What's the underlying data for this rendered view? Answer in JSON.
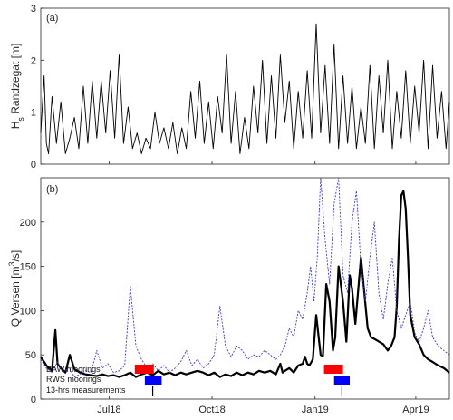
{
  "chart_data": [
    {
      "type": "line",
      "panel_label": "(a)",
      "ylabel": "H",
      "ylabel_sub": "s",
      "ylabel_rest": " Randzegat [m]",
      "ylim": [
        0,
        3
      ],
      "yticks": [
        "0",
        "1",
        "2",
        "3"
      ],
      "xlim": [
        0,
        365
      ],
      "series": [
        {
          "color": "#000000",
          "x": [
            0,
            3,
            5,
            7,
            10,
            14,
            18,
            22,
            26,
            30,
            34,
            38,
            42,
            46,
            50,
            54,
            58,
            62,
            66,
            70,
            74,
            78,
            82,
            86,
            90,
            94,
            98,
            102,
            106,
            110,
            114,
            118,
            122,
            126,
            130,
            134,
            138,
            142,
            146,
            150,
            154,
            158,
            162,
            166,
            170,
            174,
            178,
            182,
            186,
            190,
            194,
            198,
            202,
            206,
            210,
            214,
            218,
            222,
            226,
            230,
            234,
            238,
            242,
            246,
            250,
            254,
            258,
            262,
            266,
            270,
            274,
            278,
            282,
            286,
            290,
            294,
            298,
            302,
            306,
            310,
            314,
            318,
            322,
            326,
            330,
            334,
            338,
            342,
            346,
            350,
            354,
            358,
            362,
            365
          ],
          "values": [
            0.6,
            1.7,
            0.4,
            0.2,
            1.3,
            0.4,
            1.2,
            0.2,
            0.5,
            0.9,
            0.3,
            1.5,
            0.4,
            1.6,
            0.5,
            1.6,
            0.6,
            1.8,
            0.5,
            2.1,
            0.4,
            1.1,
            0.3,
            0.6,
            0.2,
            0.5,
            0.3,
            1.0,
            0.4,
            0.7,
            0.3,
            0.8,
            0.2,
            0.7,
            0.3,
            1.4,
            0.5,
            1.6,
            0.4,
            1.2,
            0.3,
            1.3,
            0.6,
            2.1,
            0.4,
            1.4,
            0.2,
            0.9,
            0.3,
            1.5,
            0.6,
            2.0,
            0.4,
            1.7,
            0.5,
            2.1,
            0.8,
            1.6,
            0.3,
            1.4,
            0.5,
            1.8,
            0.5,
            2.7,
            0.6,
            1.9,
            0.4,
            2.3,
            0.3,
            1.7,
            0.4,
            1.5,
            0.3,
            1.1,
            0.4,
            1.9,
            0.3,
            1.7,
            0.6,
            2.0,
            0.3,
            1.4,
            0.5,
            1.8,
            0.4,
            1.5,
            0.6,
            2.0,
            0.3,
            1.9,
            0.5,
            1.4,
            0.3,
            1.2
          ]
        }
      ]
    },
    {
      "type": "line",
      "panel_label": "(b)",
      "ylabel": "Q Versen [m",
      "ylabel_sup": "3",
      "ylabel_rest": "/s]",
      "ylim": [
        0,
        250
      ],
      "yticks": [
        "0",
        "50",
        "100",
        "150",
        "200"
      ],
      "xlim": [
        0,
        365
      ],
      "xticks": [
        {
          "label": "Jul18",
          "x": 61
        },
        {
          "label": "Oct18",
          "x": 153
        },
        {
          "label": "Jan19",
          "x": 245
        },
        {
          "label": "Apr19",
          "x": 335
        }
      ],
      "series": [
        {
          "color": "#000000",
          "style": "solid",
          "x": [
            0,
            5,
            10,
            13,
            15,
            18,
            22,
            26,
            30,
            35,
            40,
            45,
            50,
            55,
            60,
            65,
            70,
            75,
            80,
            85,
            90,
            95,
            100,
            105,
            110,
            115,
            120,
            125,
            130,
            135,
            140,
            145,
            150,
            155,
            160,
            165,
            170,
            175,
            180,
            185,
            190,
            195,
            200,
            205,
            210,
            214,
            216,
            218,
            222,
            226,
            230,
            234,
            236,
            238,
            240,
            243,
            246,
            250,
            252,
            255,
            258,
            261,
            263,
            266,
            270,
            273,
            276,
            278,
            281,
            284,
            286,
            289,
            292,
            295,
            298,
            302,
            306,
            310,
            313,
            316,
            318,
            320,
            322,
            324,
            326,
            328,
            330,
            334,
            338,
            342,
            346,
            350,
            355,
            360,
            365
          ],
          "values": [
            48,
            38,
            32,
            78,
            40,
            35,
            30,
            50,
            34,
            30,
            28,
            27,
            26,
            28,
            26,
            27,
            25,
            27,
            30,
            25,
            28,
            30,
            27,
            32,
            28,
            30,
            27,
            30,
            28,
            30,
            32,
            30,
            27,
            30,
            25,
            28,
            26,
            30,
            27,
            30,
            28,
            32,
            30,
            32,
            28,
            40,
            30,
            32,
            35,
            30,
            38,
            40,
            48,
            40,
            38,
            45,
            95,
            50,
            48,
            130,
            110,
            55,
            70,
            150,
            110,
            65,
            140,
            125,
            85,
            130,
            160,
            120,
            80,
            70,
            68,
            65,
            62,
            55,
            60,
            70,
            105,
            180,
            230,
            235,
            215,
            160,
            95,
            70,
            62,
            50,
            45,
            42,
            38,
            35,
            30
          ]
        },
        {
          "color": "#3a3ad0",
          "style": "dashed",
          "x": [
            0,
            5,
            10,
            15,
            20,
            25,
            30,
            35,
            40,
            45,
            50,
            55,
            60,
            65,
            70,
            75,
            80,
            85,
            90,
            95,
            100,
            105,
            110,
            115,
            120,
            125,
            130,
            135,
            140,
            145,
            150,
            155,
            160,
            165,
            170,
            175,
            180,
            185,
            190,
            195,
            200,
            205,
            210,
            214,
            218,
            222,
            226,
            230,
            234,
            238,
            241,
            244,
            247,
            250,
            254,
            258,
            262,
            266,
            270,
            274,
            278,
            282,
            286,
            290,
            294,
            298,
            302,
            306,
            310,
            314,
            318,
            322,
            326,
            330,
            334,
            338,
            342,
            346,
            350,
            355,
            360,
            365
          ],
          "values": [
            45,
            35,
            30,
            42,
            30,
            36,
            25,
            28,
            32,
            30,
            55,
            35,
            40,
            30,
            32,
            38,
            128,
            60,
            45,
            35,
            40,
            32,
            38,
            30,
            35,
            42,
            55,
            38,
            45,
            35,
            40,
            50,
            105,
            60,
            48,
            60,
            55,
            45,
            50,
            48,
            55,
            50,
            45,
            50,
            60,
            80,
            70,
            100,
            90,
            120,
            150,
            110,
            160,
            250,
            180,
            130,
            220,
            250,
            140,
            120,
            200,
            235,
            150,
            110,
            160,
            200,
            120,
            90,
            130,
            160,
            100,
            80,
            95,
            110,
            75,
            65,
            80,
            100,
            70,
            60,
            55,
            50
          ]
        }
      ],
      "legend": {
        "position": "bottom-left",
        "entries": [
          {
            "label": "BAW moorings",
            "color": "#ff0000",
            "periods": [
              {
                "start": 84,
                "end": 101
              },
              {
                "start": 253,
                "end": 270
              }
            ]
          },
          {
            "label": "RWS moorings",
            "color": "#0000ff",
            "periods": [
              {
                "start": 93,
                "end": 108
              },
              {
                "start": 262,
                "end": 276
              }
            ]
          },
          {
            "label": "13-hrs measurements",
            "color": "#000000",
            "markers": [
              100,
              269
            ]
          }
        ]
      }
    }
  ]
}
